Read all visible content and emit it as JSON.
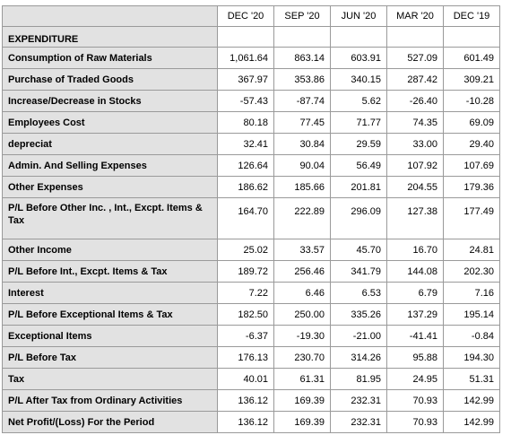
{
  "columns": [
    "DEC '20",
    "SEP '20",
    "JUN '20",
    "MAR '20",
    "DEC '19"
  ],
  "section_title": "EXPENDITURE",
  "rows": [
    {
      "label": "Consumption of Raw Materials",
      "values": [
        "1,061.64",
        "863.14",
        "603.91",
        "527.09",
        "601.49"
      ]
    },
    {
      "label": "Purchase of Traded Goods",
      "values": [
        "367.97",
        "353.86",
        "340.15",
        "287.42",
        "309.21"
      ]
    },
    {
      "label": "Increase/Decrease in Stocks",
      "values": [
        "-57.43",
        "-87.74",
        "5.62",
        "-26.40",
        "-10.28"
      ]
    },
    {
      "label": "Employees Cost",
      "values": [
        "80.18",
        "77.45",
        "71.77",
        "74.35",
        "69.09"
      ]
    },
    {
      "label": "depreciat",
      "values": [
        "32.41",
        "30.84",
        "29.59",
        "33.00",
        "29.40"
      ]
    },
    {
      "label": "Admin. And Selling Expenses",
      "values": [
        "126.64",
        "90.04",
        "56.49",
        "107.92",
        "107.69"
      ]
    },
    {
      "label": "Other Expenses",
      "values": [
        "186.62",
        "185.66",
        "201.81",
        "204.55",
        "179.36"
      ]
    },
    {
      "label": "P/L Before Other Inc. , Int., Excpt. Items & Tax",
      "values": [
        "164.70",
        "222.89",
        "296.09",
        "127.38",
        "177.49"
      ]
    },
    {
      "label": "Other Income",
      "values": [
        "25.02",
        "33.57",
        "45.70",
        "16.70",
        "24.81"
      ]
    },
    {
      "label": "P/L Before Int., Excpt. Items & Tax",
      "values": [
        "189.72",
        "256.46",
        "341.79",
        "144.08",
        "202.30"
      ]
    },
    {
      "label": "Interest",
      "values": [
        "7.22",
        "6.46",
        "6.53",
        "6.79",
        "7.16"
      ]
    },
    {
      "label": "P/L Before Exceptional Items & Tax",
      "values": [
        "182.50",
        "250.00",
        "335.26",
        "137.29",
        "195.14"
      ]
    },
    {
      "label": "Exceptional Items",
      "values": [
        "-6.37",
        "-19.30",
        "-21.00",
        "-41.41",
        "-0.84"
      ]
    },
    {
      "label": "P/L Before Tax",
      "values": [
        "176.13",
        "230.70",
        "314.26",
        "95.88",
        "194.30"
      ]
    },
    {
      "label": "Tax",
      "values": [
        "40.01",
        "61.31",
        "81.95",
        "24.95",
        "51.31"
      ]
    },
    {
      "label": "P/L After Tax from Ordinary Activities",
      "values": [
        "136.12",
        "169.39",
        "232.31",
        "70.93",
        "142.99"
      ]
    },
    {
      "label": "Net Profit/(Loss) For the Period",
      "values": [
        "136.12",
        "169.39",
        "232.31",
        "70.93",
        "142.99"
      ]
    }
  ]
}
